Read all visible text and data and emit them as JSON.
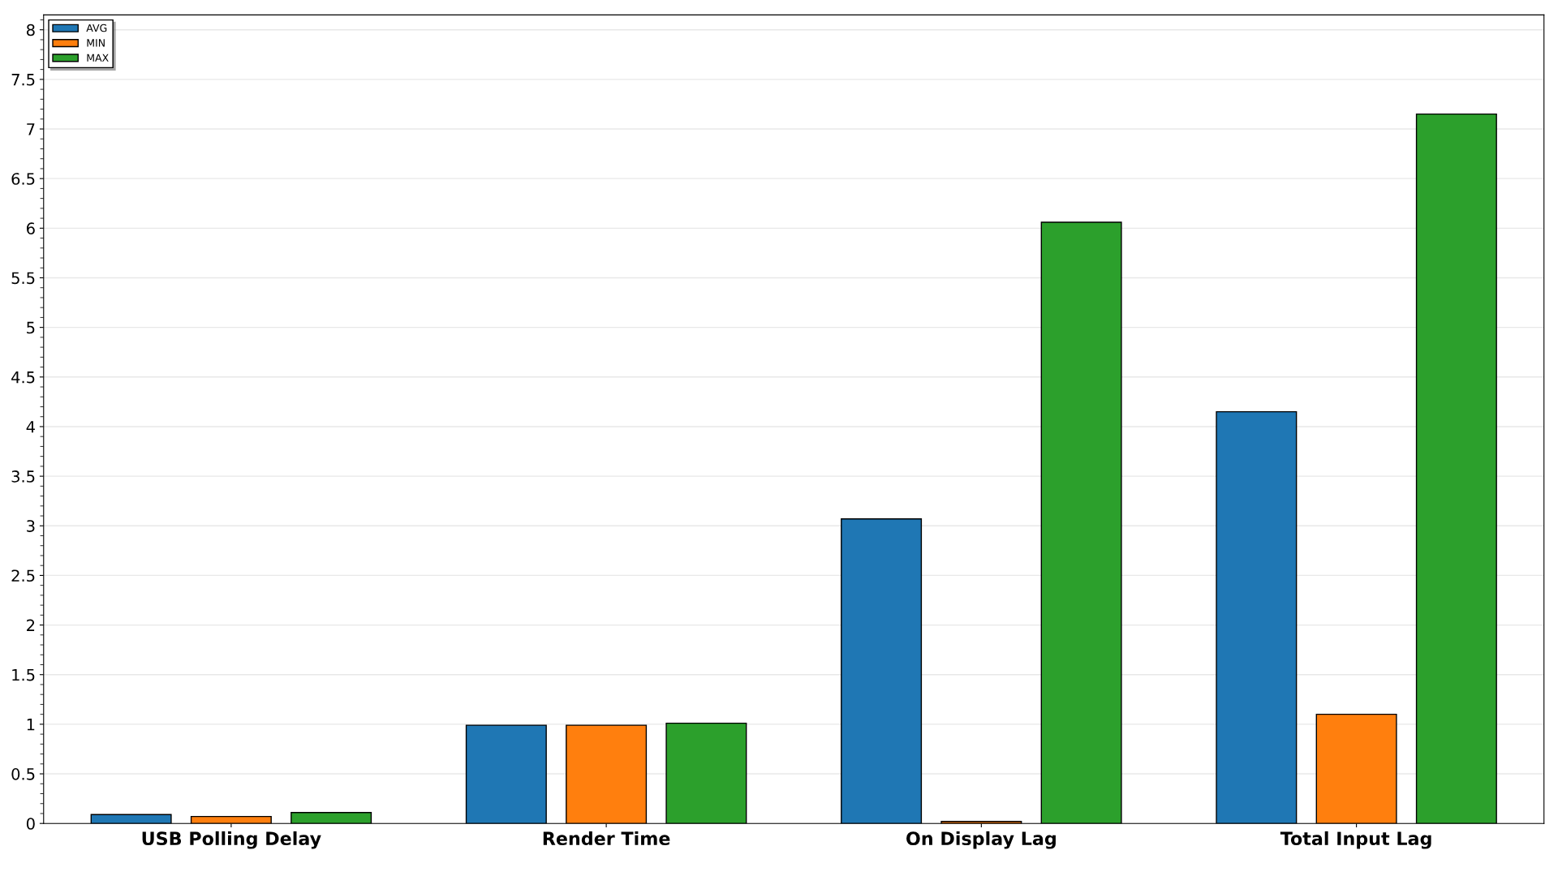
{
  "chart_data": {
    "type": "bar",
    "categories": [
      "USB Polling Delay",
      "Render Time",
      "On Display Lag",
      "Total Input Lag"
    ],
    "series": [
      {
        "name": "AVG",
        "color": "#1f77b4",
        "values": [
          0.09,
          0.99,
          3.07,
          4.15
        ]
      },
      {
        "name": "MIN",
        "color": "#ff7f0e",
        "values": [
          0.07,
          0.99,
          0.02,
          1.1
        ]
      },
      {
        "name": "MAX",
        "color": "#2ca02c",
        "values": [
          0.11,
          1.01,
          6.06,
          7.15
        ]
      }
    ],
    "ylim": [
      0,
      8.15
    ],
    "yticks": [
      0,
      0.5,
      1,
      1.5,
      2,
      2.5,
      3,
      3.5,
      4,
      4.5,
      5,
      5.5,
      6,
      6.5,
      7,
      7.5,
      8
    ],
    "grid": "y",
    "legend": "top left"
  }
}
